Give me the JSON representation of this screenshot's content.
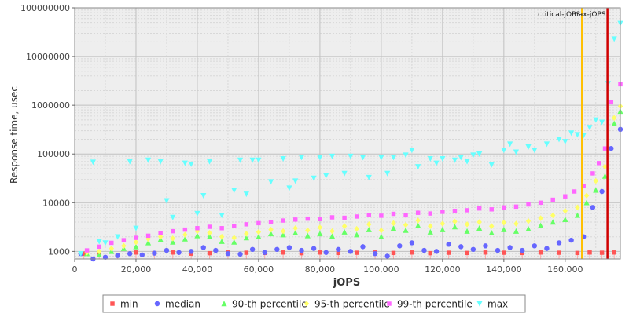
{
  "chart_data": {
    "type": "scatter",
    "title": "",
    "xlabel": "jOPS",
    "ylabel": "Response time, usec",
    "x_scale": "linear",
    "y_scale": "log",
    "xlim": [
      0,
      178000
    ],
    "ylim": [
      700,
      100000000
    ],
    "x_ticks": [
      "0",
      "20,000",
      "40,000",
      "60,000",
      "80,000",
      "100,000",
      "120,000",
      "140,000",
      "160,000"
    ],
    "y_ticks": [
      "1000",
      "10000",
      "100000",
      "1000000",
      "10000000",
      "100000000"
    ],
    "grid": true,
    "legend_position": "bottom",
    "markers": [
      {
        "name": "critical-jOPS",
        "x": 165500,
        "color": "#ffc000"
      },
      {
        "name": "max-jOPS",
        "x": 173800,
        "color": "#d00000"
      }
    ],
    "series": [
      {
        "name": "min",
        "color": "#ff5555",
        "marker": "square",
        "points": [
          [
            3000,
            900
          ],
          [
            8000,
            950
          ],
          [
            14000,
            850
          ],
          [
            20000,
            950
          ],
          [
            26000,
            920
          ],
          [
            32000,
            950
          ],
          [
            38000,
            900
          ],
          [
            44000,
            920
          ],
          [
            50000,
            950
          ],
          [
            56000,
            940
          ],
          [
            62000,
            930
          ],
          [
            68000,
            950
          ],
          [
            74000,
            920
          ],
          [
            80000,
            950
          ],
          [
            86000,
            930
          ],
          [
            92000,
            940
          ],
          [
            98000,
            950
          ],
          [
            104000,
            930
          ],
          [
            110000,
            950
          ],
          [
            116000,
            920
          ],
          [
            122000,
            940
          ],
          [
            128000,
            930
          ],
          [
            134000,
            950
          ],
          [
            140000,
            940
          ],
          [
            146000,
            930
          ],
          [
            152000,
            950
          ],
          [
            158000,
            940
          ],
          [
            164000,
            930
          ],
          [
            168000,
            950
          ],
          [
            172000,
            940
          ],
          [
            176000,
            950
          ]
        ]
      },
      {
        "name": "median",
        "color": "#6666ff",
        "marker": "circle",
        "points": [
          [
            2000,
            900
          ],
          [
            6000,
            700
          ],
          [
            10000,
            760
          ],
          [
            14000,
            820
          ],
          [
            18000,
            900
          ],
          [
            22000,
            850
          ],
          [
            26000,
            920
          ],
          [
            30000,
            1050
          ],
          [
            34000,
            950
          ],
          [
            38000,
            1000
          ],
          [
            42000,
            1200
          ],
          [
            46000,
            1050
          ],
          [
            50000,
            900
          ],
          [
            54000,
            880
          ],
          [
            58000,
            1100
          ],
          [
            62000,
            950
          ],
          [
            66000,
            1100
          ],
          [
            70000,
            1200
          ],
          [
            74000,
            1050
          ],
          [
            78000,
            1150
          ],
          [
            82000,
            950
          ],
          [
            86000,
            1100
          ],
          [
            90000,
            1000
          ],
          [
            94000,
            1250
          ],
          [
            98000,
            900
          ],
          [
            102000,
            800
          ],
          [
            106000,
            1300
          ],
          [
            110000,
            1500
          ],
          [
            114000,
            1050
          ],
          [
            118000,
            1000
          ],
          [
            122000,
            1400
          ],
          [
            126000,
            1250
          ],
          [
            130000,
            1100
          ],
          [
            134000,
            1300
          ],
          [
            138000,
            1050
          ],
          [
            142000,
            1200
          ],
          [
            146000,
            1050
          ],
          [
            150000,
            1300
          ],
          [
            154000,
            1150
          ],
          [
            158000,
            1500
          ],
          [
            162000,
            1700
          ],
          [
            166000,
            2000
          ],
          [
            169000,
            8000
          ],
          [
            172000,
            17000
          ],
          [
            175000,
            130000
          ],
          [
            178000,
            320000
          ]
        ]
      },
      {
        "name": "90-th percentile",
        "color": "#66ff66",
        "marker": "triangle",
        "points": [
          [
            4000,
            900
          ],
          [
            8000,
            850
          ],
          [
            12000,
            1000
          ],
          [
            16000,
            1150
          ],
          [
            20000,
            1250
          ],
          [
            24000,
            1500
          ],
          [
            28000,
            1750
          ],
          [
            32000,
            1550
          ],
          [
            36000,
            1800
          ],
          [
            40000,
            2100
          ],
          [
            44000,
            2000
          ],
          [
            48000,
            1600
          ],
          [
            52000,
            1550
          ],
          [
            56000,
            1900
          ],
          [
            60000,
            2000
          ],
          [
            64000,
            2300
          ],
          [
            68000,
            2200
          ],
          [
            72000,
            2400
          ],
          [
            76000,
            2100
          ],
          [
            80000,
            2300
          ],
          [
            84000,
            2050
          ],
          [
            88000,
            2500
          ],
          [
            92000,
            2200
          ],
          [
            96000,
            2800
          ],
          [
            100000,
            2000
          ],
          [
            104000,
            3000
          ],
          [
            108000,
            2700
          ],
          [
            112000,
            3400
          ],
          [
            116000,
            2500
          ],
          [
            120000,
            2800
          ],
          [
            124000,
            3200
          ],
          [
            128000,
            2600
          ],
          [
            132000,
            3000
          ],
          [
            136000,
            2400
          ],
          [
            140000,
            2800
          ],
          [
            144000,
            2600
          ],
          [
            148000,
            2900
          ],
          [
            152000,
            3400
          ],
          [
            156000,
            4000
          ],
          [
            160000,
            4500
          ],
          [
            164000,
            5500
          ],
          [
            167000,
            10000
          ],
          [
            170000,
            18000
          ],
          [
            173000,
            35000
          ],
          [
            176000,
            420000
          ],
          [
            178000,
            750000
          ]
        ]
      },
      {
        "name": "95-th percentile",
        "color": "#ffff66",
        "marker": "diamond",
        "points": [
          [
            4000,
            950
          ],
          [
            8000,
            1000
          ],
          [
            12000,
            1150
          ],
          [
            16000,
            1300
          ],
          [
            20000,
            1550
          ],
          [
            24000,
            1800
          ],
          [
            28000,
            2000
          ],
          [
            32000,
            1850
          ],
          [
            36000,
            2200
          ],
          [
            40000,
            2600
          ],
          [
            44000,
            2400
          ],
          [
            48000,
            2000
          ],
          [
            52000,
            1900
          ],
          [
            56000,
            2300
          ],
          [
            60000,
            2500
          ],
          [
            64000,
            2800
          ],
          [
            68000,
            2600
          ],
          [
            72000,
            3000
          ],
          [
            76000,
            2700
          ],
          [
            80000,
            3100
          ],
          [
            84000,
            2600
          ],
          [
            88000,
            3300
          ],
          [
            92000,
            2900
          ],
          [
            96000,
            3600
          ],
          [
            100000,
            2700
          ],
          [
            104000,
            3800
          ],
          [
            108000,
            3500
          ],
          [
            112000,
            4300
          ],
          [
            116000,
            3300
          ],
          [
            120000,
            3700
          ],
          [
            124000,
            4100
          ],
          [
            128000,
            3600
          ],
          [
            132000,
            4000
          ],
          [
            136000,
            3300
          ],
          [
            140000,
            3900
          ],
          [
            144000,
            3700
          ],
          [
            148000,
            4200
          ],
          [
            152000,
            4800
          ],
          [
            156000,
            5500
          ],
          [
            160000,
            6800
          ],
          [
            164000,
            8000
          ],
          [
            167000,
            14000
          ],
          [
            170000,
            28000
          ],
          [
            173000,
            55000
          ],
          [
            176000,
            550000
          ],
          [
            178000,
            950000
          ]
        ]
      },
      {
        "name": "99-th percentile",
        "color": "#ff66ff",
        "marker": "square",
        "points": [
          [
            4000,
            1050
          ],
          [
            8000,
            1250
          ],
          [
            12000,
            1500
          ],
          [
            16000,
            1700
          ],
          [
            20000,
            1900
          ],
          [
            24000,
            2100
          ],
          [
            28000,
            2400
          ],
          [
            32000,
            2600
          ],
          [
            36000,
            2800
          ],
          [
            40000,
            3000
          ],
          [
            44000,
            3200
          ],
          [
            48000,
            3000
          ],
          [
            52000,
            3300
          ],
          [
            56000,
            3600
          ],
          [
            60000,
            3800
          ],
          [
            64000,
            4000
          ],
          [
            68000,
            4300
          ],
          [
            72000,
            4500
          ],
          [
            76000,
            4700
          ],
          [
            80000,
            4600
          ],
          [
            84000,
            5000
          ],
          [
            88000,
            4900
          ],
          [
            92000,
            5200
          ],
          [
            96000,
            5600
          ],
          [
            100000,
            5400
          ],
          [
            104000,
            5900
          ],
          [
            108000,
            5500
          ],
          [
            112000,
            6200
          ],
          [
            116000,
            6000
          ],
          [
            120000,
            6500
          ],
          [
            124000,
            6800
          ],
          [
            128000,
            7000
          ],
          [
            132000,
            7600
          ],
          [
            136000,
            7300
          ],
          [
            140000,
            8000
          ],
          [
            144000,
            8300
          ],
          [
            148000,
            9200
          ],
          [
            152000,
            10000
          ],
          [
            156000,
            11500
          ],
          [
            160000,
            13500
          ],
          [
            163000,
            17000
          ],
          [
            166000,
            22000
          ],
          [
            169000,
            40000
          ],
          [
            171000,
            65000
          ],
          [
            173000,
            130000
          ],
          [
            175000,
            1150000
          ],
          [
            178000,
            2700000
          ]
        ]
      },
      {
        "name": "max",
        "color": "#66ffff",
        "marker": "triangle-down",
        "points": [
          [
            2000,
            900
          ],
          [
            6000,
            68000
          ],
          [
            8000,
            1600
          ],
          [
            10000,
            1500
          ],
          [
            14000,
            2000
          ],
          [
            18000,
            70000
          ],
          [
            20000,
            3000
          ],
          [
            24000,
            75000
          ],
          [
            28000,
            70000
          ],
          [
            30000,
            11000
          ],
          [
            32000,
            5000
          ],
          [
            36000,
            65000
          ],
          [
            38000,
            62000
          ],
          [
            40000,
            6000
          ],
          [
            42000,
            14000
          ],
          [
            44000,
            70000
          ],
          [
            48000,
            5500
          ],
          [
            52000,
            18000
          ],
          [
            54000,
            75000
          ],
          [
            56000,
            15000
          ],
          [
            58000,
            75000
          ],
          [
            60000,
            75000
          ],
          [
            64000,
            27000
          ],
          [
            68000,
            80000
          ],
          [
            70000,
            20000
          ],
          [
            72000,
            28000
          ],
          [
            74000,
            85000
          ],
          [
            78000,
            32000
          ],
          [
            80000,
            85000
          ],
          [
            82000,
            36000
          ],
          [
            84000,
            90000
          ],
          [
            88000,
            40000
          ],
          [
            90000,
            90000
          ],
          [
            94000,
            85000
          ],
          [
            96000,
            33000
          ],
          [
            100000,
            85000
          ],
          [
            102000,
            40000
          ],
          [
            104000,
            85000
          ],
          [
            108000,
            95000
          ],
          [
            110000,
            120000
          ],
          [
            112000,
            55000
          ],
          [
            116000,
            80000
          ],
          [
            118000,
            65000
          ],
          [
            120000,
            80000
          ],
          [
            124000,
            75000
          ],
          [
            126000,
            85000
          ],
          [
            128000,
            70000
          ],
          [
            130000,
            95000
          ],
          [
            132000,
            100000
          ],
          [
            136000,
            60000
          ],
          [
            140000,
            120000
          ],
          [
            142000,
            160000
          ],
          [
            144000,
            110000
          ],
          [
            148000,
            140000
          ],
          [
            150000,
            120000
          ],
          [
            154000,
            160000
          ],
          [
            158000,
            200000
          ],
          [
            160000,
            180000
          ],
          [
            162000,
            270000
          ],
          [
            164000,
            250000
          ],
          [
            166000,
            240000
          ],
          [
            168000,
            350000
          ],
          [
            170000,
            500000
          ],
          [
            172000,
            450000
          ],
          [
            174000,
            2800000
          ],
          [
            176000,
            23000000
          ],
          [
            178000,
            48000000
          ]
        ]
      }
    ]
  }
}
